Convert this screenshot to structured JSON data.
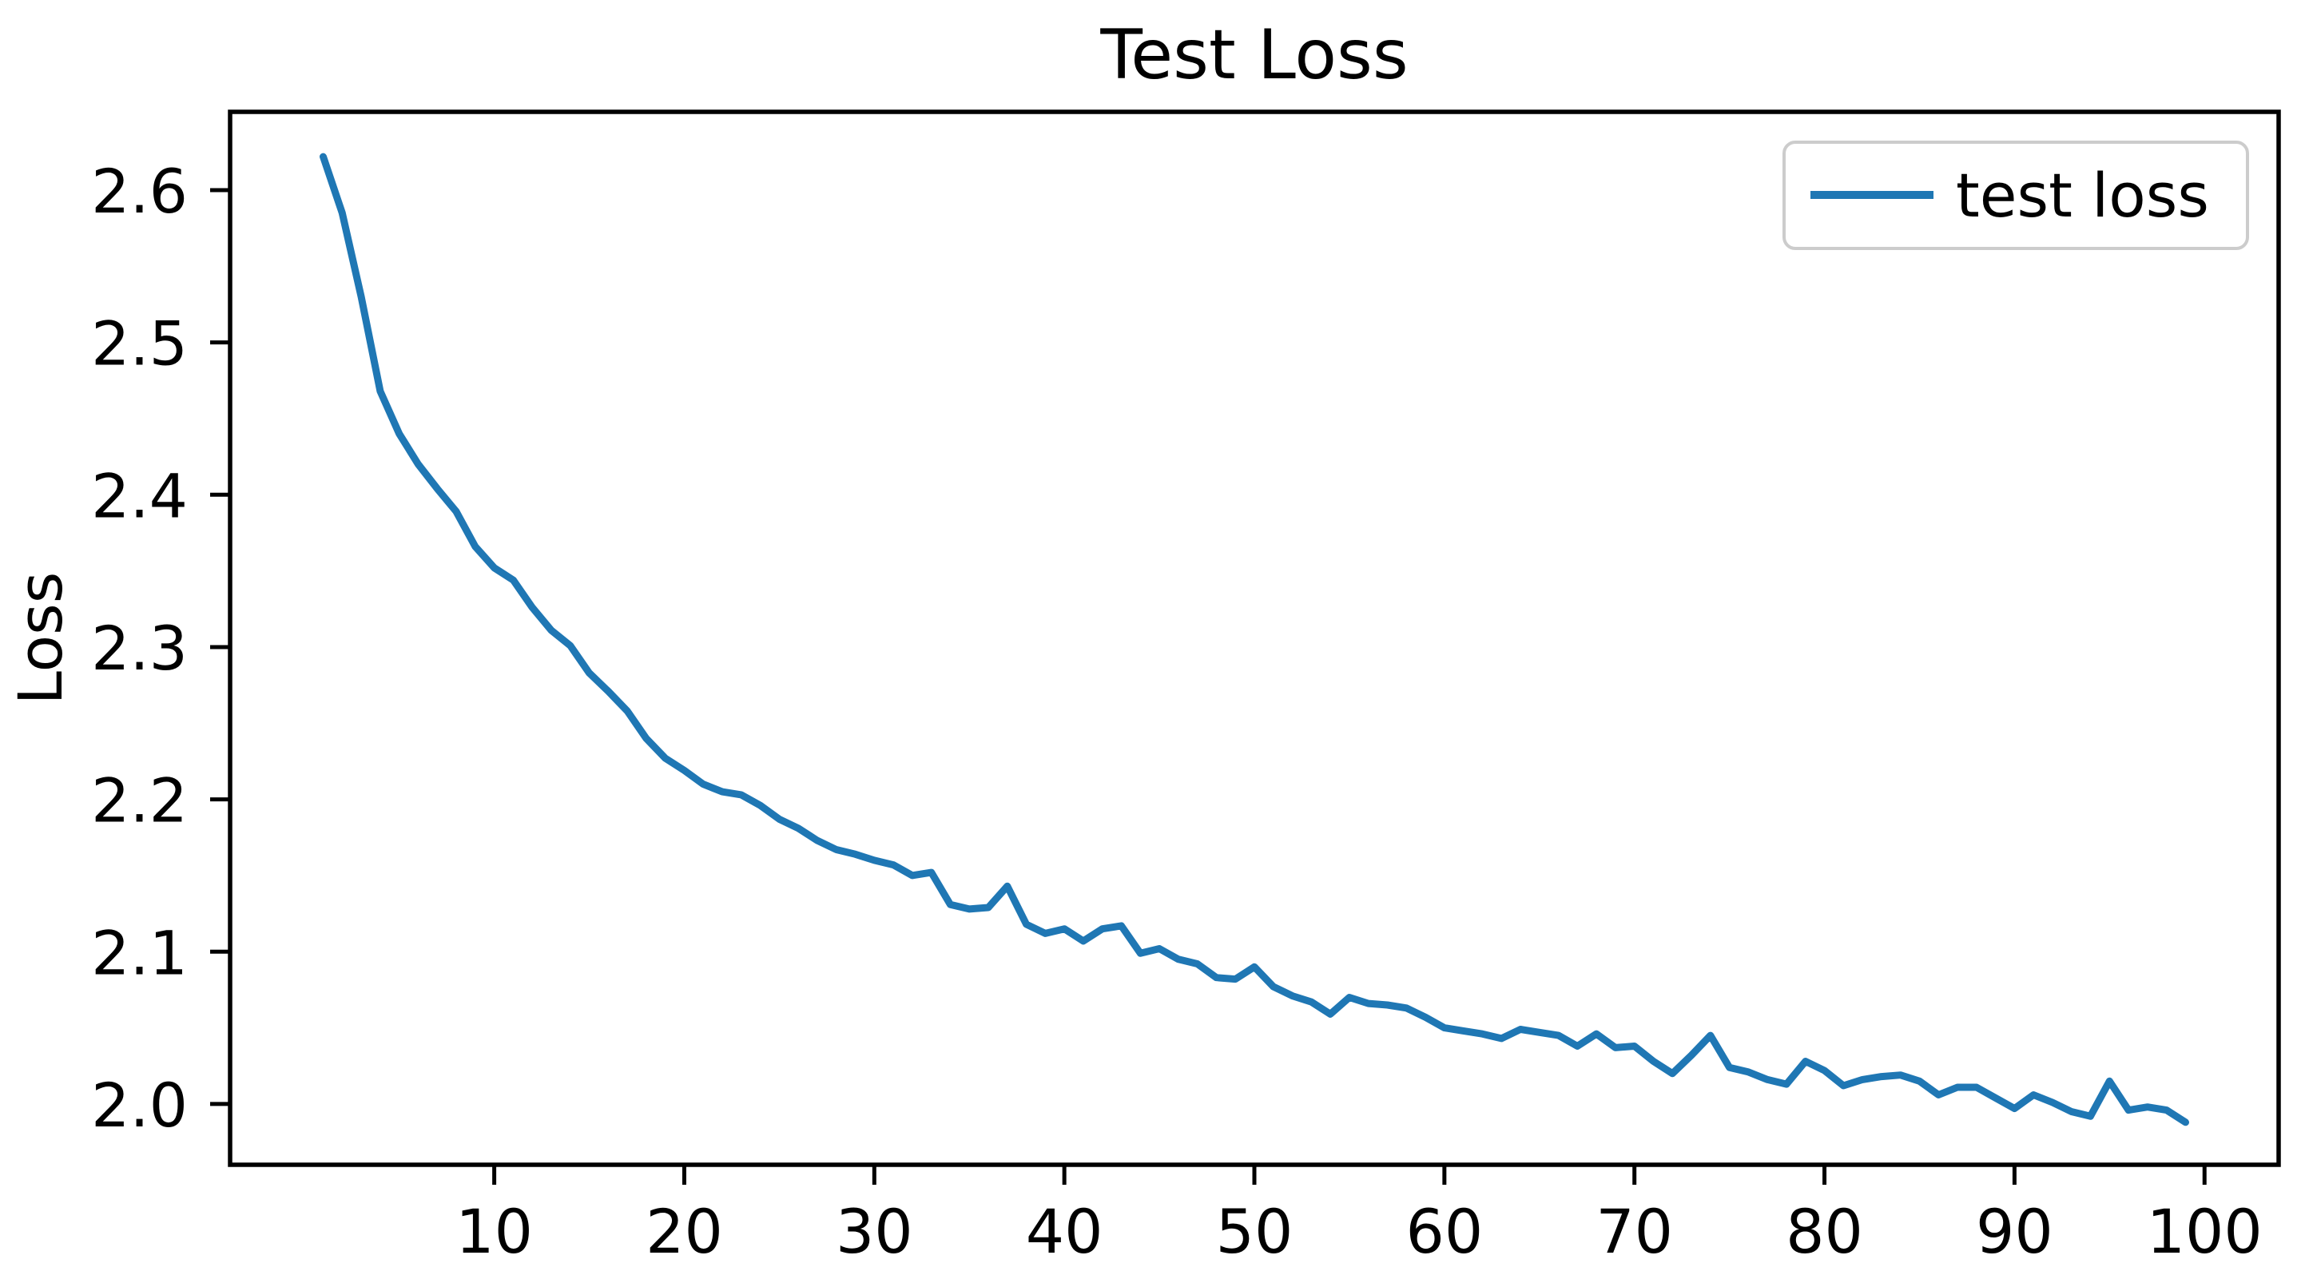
{
  "figure": {
    "background": "#ffffff",
    "text_color": "#000000",
    "spine_color": "#000000"
  },
  "chart_data": {
    "type": "line",
    "title": "Test Loss",
    "xlabel": "",
    "ylabel": "Loss",
    "grid": false,
    "xlim": [
      -3.9,
      103.9
    ],
    "ylim": [
      1.9601,
      2.6514
    ],
    "x_ticks": [
      10,
      20,
      30,
      40,
      50,
      60,
      70,
      80,
      90,
      100
    ],
    "x_tick_labels": [
      "10",
      "20",
      "30",
      "40",
      "50",
      "60",
      "70",
      "80",
      "90",
      "100"
    ],
    "y_ticks": [
      2.0,
      2.1,
      2.2,
      2.3,
      2.4,
      2.5,
      2.6
    ],
    "y_tick_labels": [
      "2.0",
      "2.1",
      "2.2",
      "2.3",
      "2.4",
      "2.5",
      "2.6"
    ],
    "legend": {
      "position": "upper right",
      "entries": [
        {
          "label": "test loss",
          "color": "#1f77b4"
        }
      ]
    },
    "series": [
      {
        "name": "test loss",
        "color": "#1f77b4",
        "x_start": 1,
        "x_step": 1,
        "values": [
          2.622,
          2.585,
          2.53,
          2.468,
          2.44,
          2.42,
          2.404,
          2.389,
          2.366,
          2.352,
          2.344,
          2.326,
          2.311,
          2.301,
          2.283,
          2.271,
          2.258,
          2.24,
          2.227,
          2.219,
          2.21,
          2.205,
          2.203,
          2.196,
          2.187,
          2.181,
          2.173,
          2.167,
          2.164,
          2.16,
          2.157,
          2.15,
          2.152,
          2.131,
          2.128,
          2.129,
          2.143,
          2.118,
          2.112,
          2.115,
          2.107,
          2.115,
          2.117,
          2.099,
          2.102,
          2.095,
          2.092,
          2.083,
          2.082,
          2.09,
          2.077,
          2.071,
          2.067,
          2.059,
          2.07,
          2.066,
          2.065,
          2.063,
          2.057,
          2.05,
          2.048,
          2.046,
          2.043,
          2.049,
          2.047,
          2.045,
          2.038,
          2.046,
          2.037,
          2.038,
          2.028,
          2.02,
          2.032,
          2.045,
          2.024,
          2.021,
          2.016,
          2.013,
          2.028,
          2.022,
          2.012,
          2.016,
          2.018,
          2.019,
          2.015,
          2.006,
          2.011,
          2.011,
          2.004,
          1.997,
          2.006,
          2.001,
          1.995,
          1.992,
          2.015,
          1.996,
          1.998,
          1.996,
          1.988
        ]
      }
    ]
  }
}
